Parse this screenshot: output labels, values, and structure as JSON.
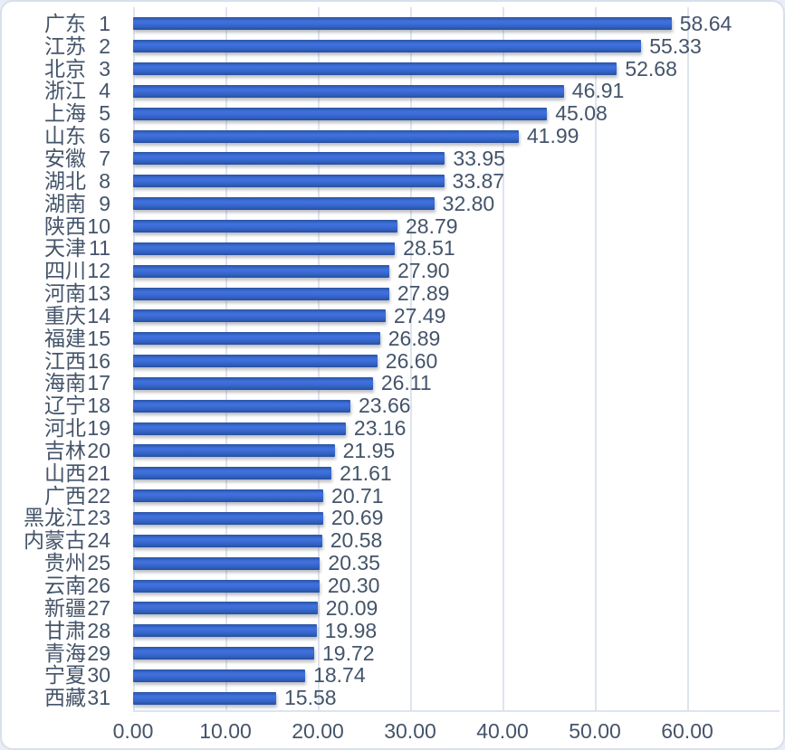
{
  "chart_data": {
    "type": "bar",
    "orientation": "horizontal",
    "title": "",
    "xlabel": "",
    "ylabel": "",
    "grid": true,
    "legend": false,
    "bar_color": "#3A68D0",
    "bar_gradient_top": "#2A53A2",
    "bar_gradient_light": "#4171DE",
    "bar_gradient_bottom": "#27509E",
    "gridline_color": "#DDE4EE",
    "text_color": "#44546A",
    "background_color": "#FFFFFF",
    "x_axis": {
      "min": 0,
      "max": 70,
      "tick_interval": 10,
      "ticks": [
        "0.00",
        "10.00",
        "20.00",
        "30.00",
        "40.00",
        "50.00",
        "60.00"
      ]
    },
    "rows": [
      {
        "province": "广东",
        "rank": "1",
        "value": 58.64,
        "label": "58.64"
      },
      {
        "province": "江苏",
        "rank": "2",
        "value": 55.33,
        "label": "55.33"
      },
      {
        "province": "北京",
        "rank": "3",
        "value": 52.68,
        "label": "52.68"
      },
      {
        "province": "浙江",
        "rank": "4",
        "value": 46.91,
        "label": "46.91"
      },
      {
        "province": "上海",
        "rank": "5",
        "value": 45.08,
        "label": "45.08"
      },
      {
        "province": "山东",
        "rank": "6",
        "value": 41.99,
        "label": "41.99"
      },
      {
        "province": "安徽",
        "rank": "7",
        "value": 33.95,
        "label": "33.95"
      },
      {
        "province": "湖北",
        "rank": "8",
        "value": 33.87,
        "label": "33.87"
      },
      {
        "province": "湖南",
        "rank": "9",
        "value": 32.8,
        "label": "32.80"
      },
      {
        "province": "陕西",
        "rank": "10",
        "value": 28.79,
        "label": "28.79"
      },
      {
        "province": "天津",
        "rank": "11",
        "value": 28.51,
        "label": "28.51"
      },
      {
        "province": "四川",
        "rank": "12",
        "value": 27.9,
        "label": "27.90"
      },
      {
        "province": "河南",
        "rank": "13",
        "value": 27.89,
        "label": "27.89"
      },
      {
        "province": "重庆",
        "rank": "14",
        "value": 27.49,
        "label": "27.49"
      },
      {
        "province": "福建",
        "rank": "15",
        "value": 26.89,
        "label": "26.89"
      },
      {
        "province": "江西",
        "rank": "16",
        "value": 26.6,
        "label": "26.60"
      },
      {
        "province": "海南",
        "rank": "17",
        "value": 26.11,
        "label": "26.11"
      },
      {
        "province": "辽宁",
        "rank": "18",
        "value": 23.66,
        "label": "23.66"
      },
      {
        "province": "河北",
        "rank": "19",
        "value": 23.16,
        "label": "23.16"
      },
      {
        "province": "吉林",
        "rank": "20",
        "value": 21.95,
        "label": "21.95"
      },
      {
        "province": "山西",
        "rank": "21",
        "value": 21.61,
        "label": "21.61"
      },
      {
        "province": "广西",
        "rank": "22",
        "value": 20.71,
        "label": "20.71"
      },
      {
        "province": "黑龙江",
        "rank": "23",
        "value": 20.69,
        "label": "20.69"
      },
      {
        "province": "内蒙古",
        "rank": "24",
        "value": 20.58,
        "label": "20.58"
      },
      {
        "province": "贵州",
        "rank": "25",
        "value": 20.35,
        "label": "20.35"
      },
      {
        "province": "云南",
        "rank": "26",
        "value": 20.3,
        "label": "20.30"
      },
      {
        "province": "新疆",
        "rank": "27",
        "value": 20.09,
        "label": "20.09"
      },
      {
        "province": "甘肃",
        "rank": "28",
        "value": 19.98,
        "label": "19.98"
      },
      {
        "province": "青海",
        "rank": "29",
        "value": 19.72,
        "label": "19.72"
      },
      {
        "province": "宁夏",
        "rank": "30",
        "value": 18.74,
        "label": "18.74"
      },
      {
        "province": "西藏",
        "rank": "31",
        "value": 15.58,
        "label": "15.58"
      }
    ]
  }
}
